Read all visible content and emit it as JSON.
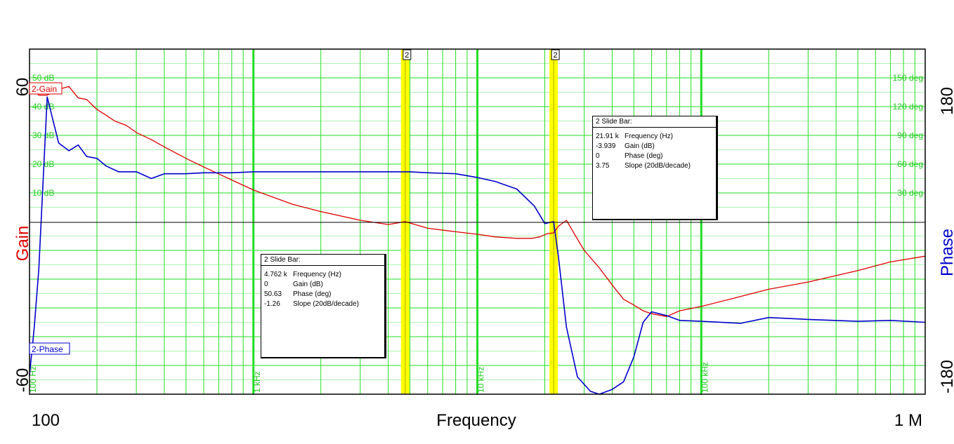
{
  "chart_data": {
    "type": "line",
    "xlabel": "Frequency",
    "x_scale": "log",
    "xlim": [
      100,
      1000000
    ],
    "x_tick_labels": [
      "100",
      "1 M"
    ],
    "x_grid_labels": [
      "100 Hz",
      "1 kHz",
      "10 kHz",
      "100 kHz"
    ],
    "left_axis": {
      "label": "Gain",
      "ticks": [
        "60",
        "-60"
      ],
      "ylim": [
        -60,
        60
      ],
      "color": "#dd0000"
    },
    "right_axis": {
      "label": "Phase",
      "ticks": [
        "180",
        "-180"
      ],
      "ylim": [
        -180,
        180
      ],
      "color": "#0000cc"
    },
    "gain_grid_labels": [
      "50 dB",
      "40 dB",
      "30 dB",
      "20 dB",
      "10 dB"
    ],
    "phase_grid_labels": [
      "150 deg",
      "120 deg",
      "90 deg",
      "60 deg",
      "30 deg"
    ],
    "grid": true,
    "grid_color": "#22dd22",
    "slide_bar_color": "#ffff00",
    "series": [
      {
        "name": "2-Gain",
        "axis": "left",
        "color": "#dd0000",
        "x": [
          100,
          110,
          120,
          135,
          150,
          165,
          180,
          200,
          220,
          240,
          270,
          300,
          350,
          400,
          500,
          600,
          800,
          1000,
          1500,
          2000,
          3000,
          4000,
          4762,
          6000,
          8000,
          10000,
          12000,
          15000,
          17500,
          19000,
          20500,
          21910,
          23000,
          25000,
          27000,
          30000,
          35000,
          40000,
          45000,
          50000,
          55000,
          60000,
          70000,
          80000,
          100000,
          150000,
          200000,
          300000,
          500000,
          700000,
          1000000
        ],
        "values": [
          47,
          44,
          44,
          46,
          47,
          43,
          42.5,
          39,
          37,
          35,
          33.5,
          31,
          28.5,
          26,
          22,
          19,
          14.5,
          11,
          6,
          3.5,
          0.5,
          -1,
          0,
          -2.3,
          -3.5,
          -4.4,
          -5.3,
          -5.8,
          -5.8,
          -5.3,
          -4.2,
          -3.9,
          -1.6,
          0.5,
          -4,
          -10,
          -16,
          -22,
          -27,
          -29,
          -31,
          -32,
          -33,
          -31,
          -29.5,
          -26,
          -23.5,
          -21,
          -17,
          -14,
          -12
        ]
      },
      {
        "name": "2-Phase",
        "axis": "right",
        "color": "#0000cc",
        "x": [
          100,
          105,
          110,
          120,
          135,
          150,
          165,
          180,
          200,
          220,
          250,
          300,
          350,
          400,
          500,
          600,
          800,
          1000,
          1500,
          2000,
          3000,
          4000,
          5000,
          6000,
          8000,
          10000,
          12000,
          15000,
          18000,
          20000,
          21910,
          23000,
          25000,
          28000,
          32000,
          35000,
          40000,
          45000,
          50000,
          55000,
          60000,
          70000,
          80000,
          100000,
          150000,
          200000,
          300000,
          500000,
          700000,
          1000000
        ],
        "values": [
          -160,
          -110,
          -50,
          130,
          82,
          74,
          80,
          68,
          66,
          58,
          52,
          52,
          45,
          50,
          50,
          51,
          51,
          52,
          52,
          52,
          52,
          52,
          52,
          51,
          50,
          46,
          42,
          34,
          16,
          -2,
          0,
          -36,
          -110,
          -162,
          -177,
          -180,
          -175,
          -167,
          -141,
          -105,
          -94,
          -98,
          -103,
          -104,
          -106,
          -100,
          -102,
          -104,
          -103,
          -105
        ]
      }
    ],
    "slide_bars": [
      {
        "label": "2",
        "frequency": 4762
      },
      {
        "label": "2",
        "frequency": 21910
      }
    ],
    "readouts": [
      {
        "title": "2  Slide Bar:",
        "rows": [
          {
            "value": "21.91 k",
            "label": "Frequency (Hz)"
          },
          {
            "value": "-3.939",
            "label": "Gain (dB)"
          },
          {
            "value": "0",
            "label": "Phase (deg)"
          },
          {
            "value": "3.75",
            "label": "Slope (20dB/decade)"
          }
        ]
      },
      {
        "title": "2  Slide Bar:",
        "rows": [
          {
            "value": "4.762 k",
            "label": "Frequency (Hz)"
          },
          {
            "value": "0",
            "label": "Gain (dB)"
          },
          {
            "value": "50.63",
            "label": "Phase (deg)"
          },
          {
            "value": "-1.26",
            "label": "Slope (20dB/decade)"
          }
        ]
      }
    ]
  }
}
